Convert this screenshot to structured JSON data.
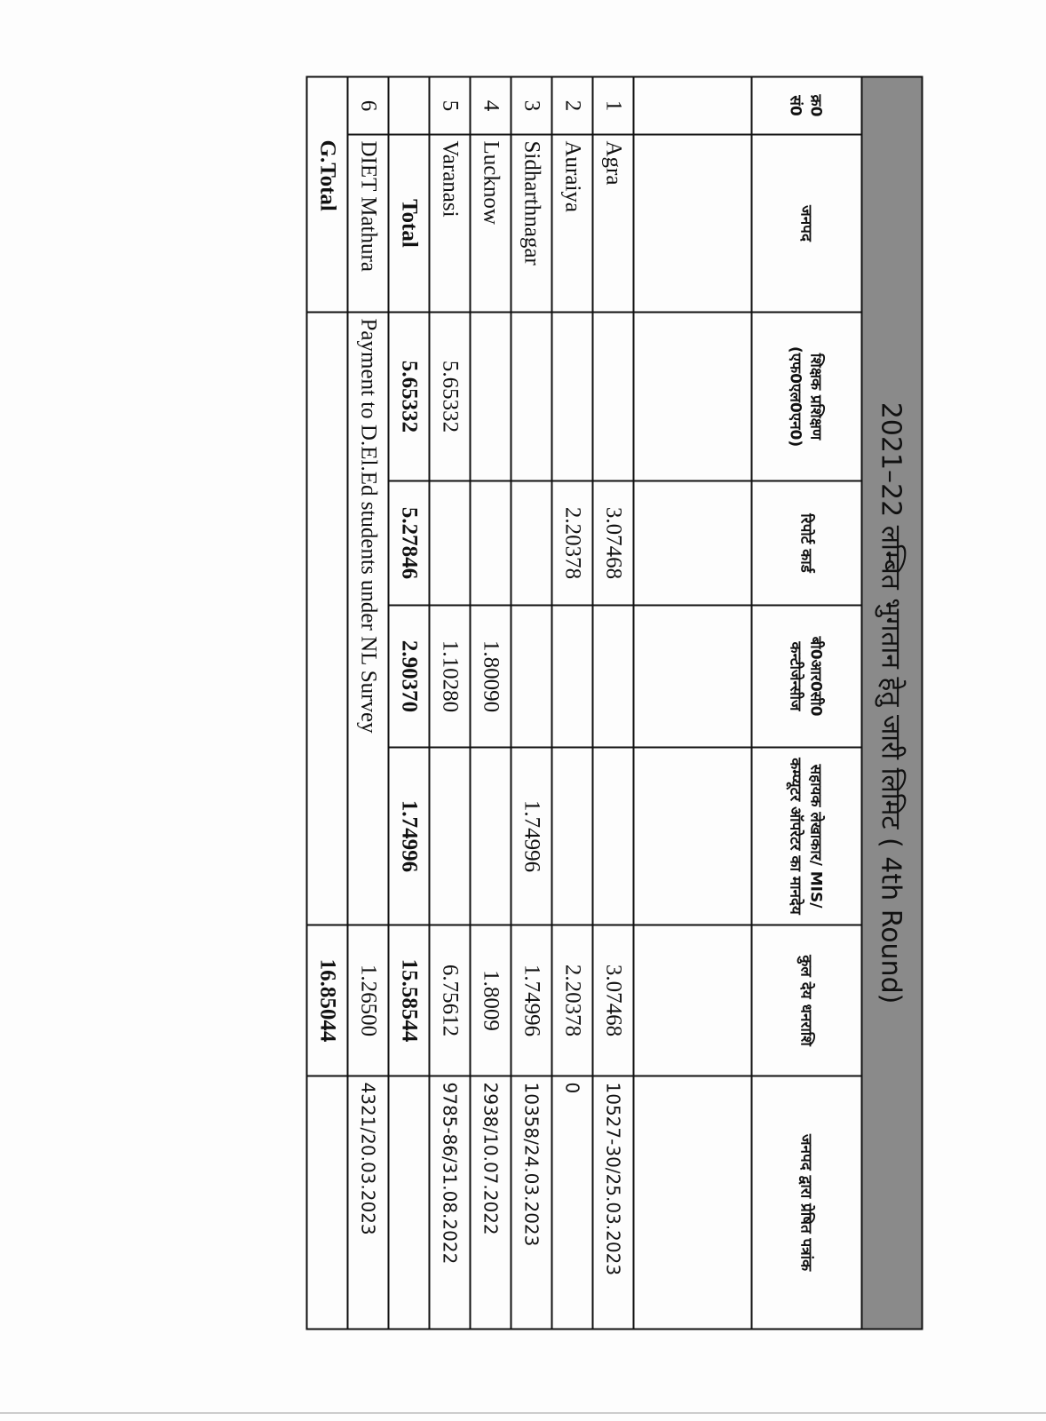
{
  "title": "2021–22 लम्बित भुगतान हेतु जारी लिमिट ( 4th Round)",
  "headers": [
    "क्र0 सं0",
    "जनपद",
    "शिक्षक प्रशिक्षण (एफ0एल0एन0)",
    "रिपोर्ट कार्ड",
    "बी0आर0सी0 कन्टीजेन्सीज",
    "सहायक लेखाकार/ MIS/ कम्प्यूटर ऑपरेटर का मानदेय",
    "कुल देय धनराशि",
    "जनपद द्वारा प्रेषित पत्रांक"
  ],
  "rows": [
    {
      "sn": "1",
      "district": "Agra",
      "teacher": "",
      "report": "3.07468",
      "brc": "",
      "assistant": "",
      "total": "3.07468",
      "letter": "10527-30/25.03.2023"
    },
    {
      "sn": "2",
      "district": "Auraiya",
      "teacher": "",
      "report": "2.20378",
      "brc": "",
      "assistant": "",
      "total": "2.20378",
      "letter": "0"
    },
    {
      "sn": "3",
      "district": "Sidharthnagar",
      "teacher": "",
      "report": "",
      "brc": "",
      "assistant": "1.74996",
      "total": "1.74996",
      "letter": "10358/24.03.2023"
    },
    {
      "sn": "4",
      "district": "Lucknow",
      "teacher": "",
      "report": "",
      "brc": "1.80090",
      "assistant": "",
      "total": "1.8009",
      "letter": "2938/10.07.2022"
    },
    {
      "sn": "5",
      "district": "Varanasi",
      "teacher": "5.65332",
      "report": "",
      "brc": "1.10280",
      "assistant": "",
      "total": "6.75612",
      "letter": "9785-86/31.08.2022"
    }
  ],
  "subtotal": {
    "label": "Total",
    "teacher": "5.65332",
    "report": "5.27846",
    "brc": "2.90370",
    "assistant": "1.74996",
    "total": "15.58544"
  },
  "diet": {
    "sn": "6",
    "district": "DIET Mathura",
    "description": "Payment to D.El.Ed students under NL Survey",
    "total": "1.26500",
    "letter": "4321/20.03.2023"
  },
  "grand_total": {
    "label": "G.Total",
    "total": "16.85044"
  }
}
